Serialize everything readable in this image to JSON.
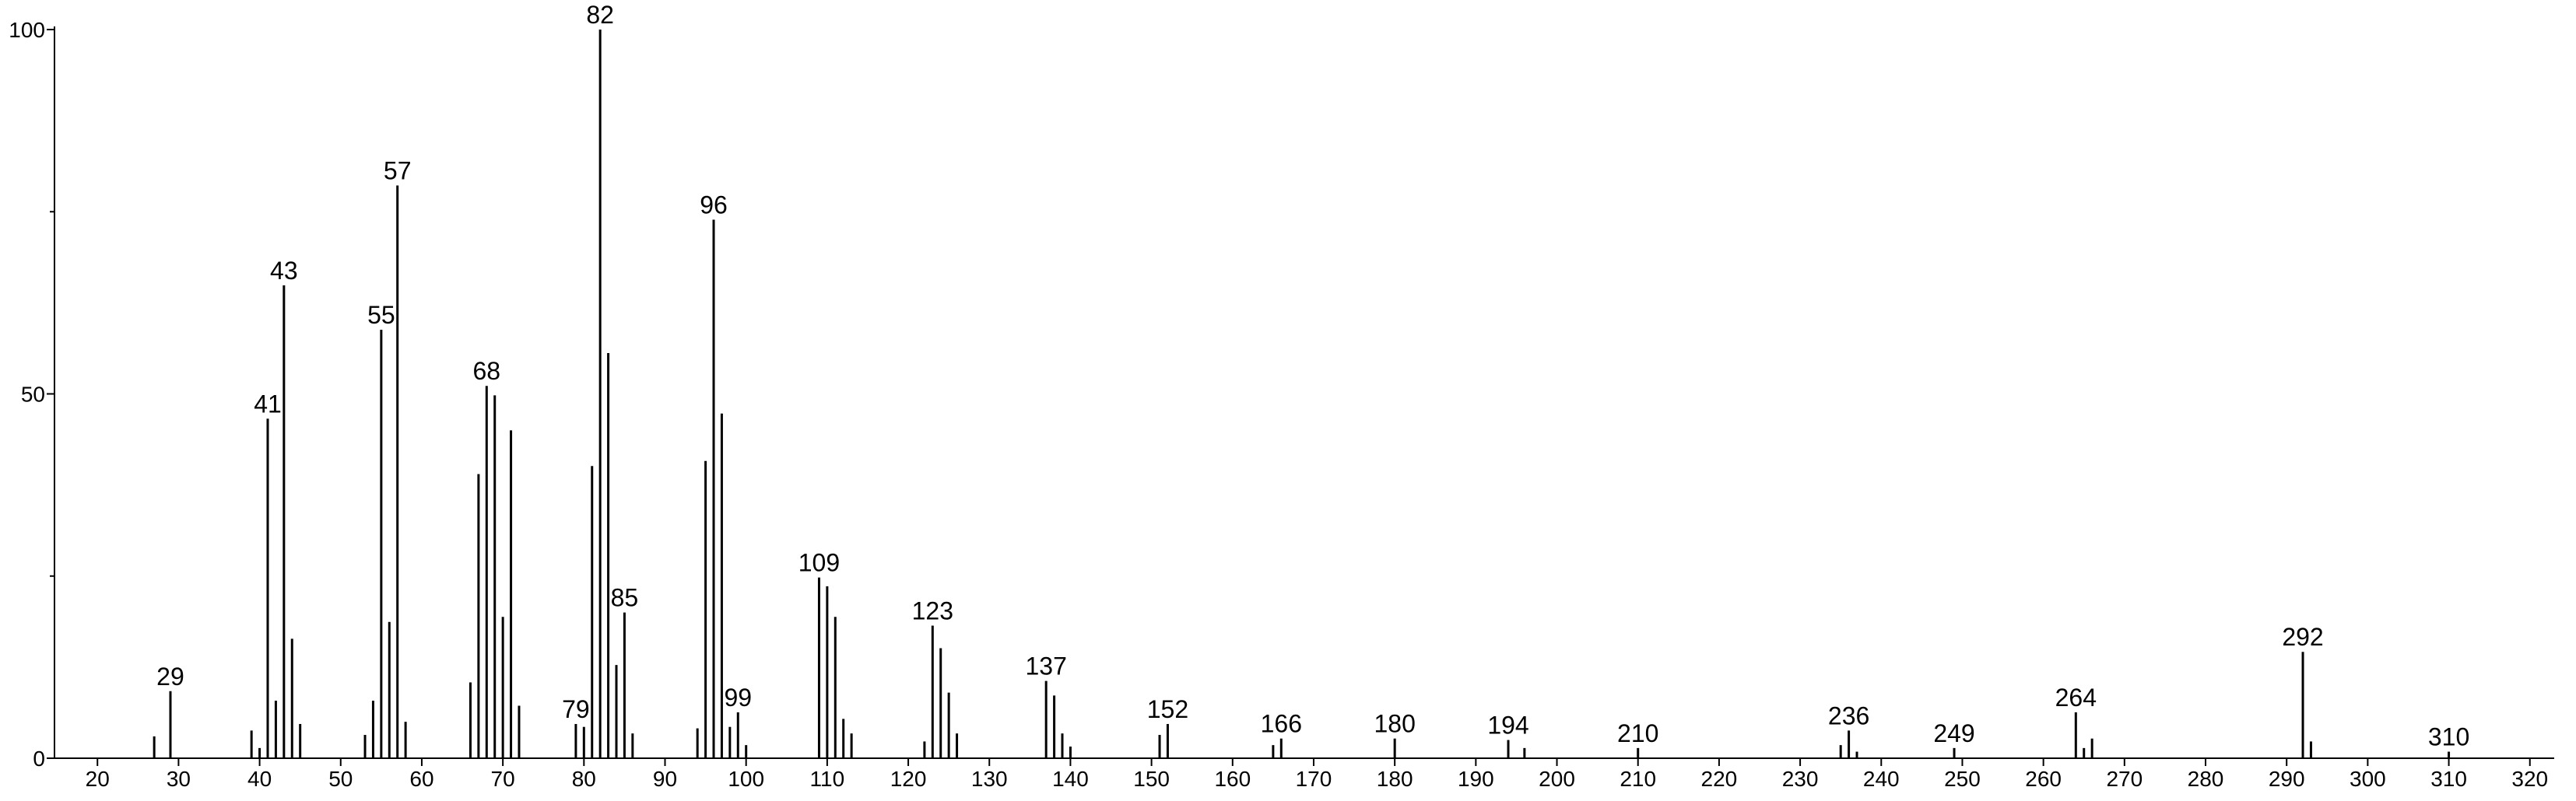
{
  "chart_data": {
    "type": "stem",
    "series": [
      {
        "color": "#000000",
        "x": [
          27,
          39,
          40,
          42,
          44,
          45,
          53,
          54,
          56,
          58,
          66,
          67,
          69,
          70,
          71,
          72,
          80,
          81,
          83,
          84,
          86,
          94,
          95,
          97,
          98,
          100,
          110,
          111,
          112,
          113,
          122,
          124,
          125,
          126,
          138,
          139,
          140,
          151,
          165,
          196,
          235,
          237,
          265,
          266,
          293
        ],
        "values": [
          3,
          3.8,
          1.4,
          7.9,
          16.4,
          4.7,
          3.2,
          7.9,
          18.7,
          5,
          10.4,
          39,
          49.8,
          19.4,
          45,
          7.2,
          4.3,
          40.1,
          55.6,
          12.8,
          3.4,
          4.1,
          40.8,
          47.3,
          4.3,
          1.8,
          23.6,
          19.4,
          5.4,
          3.4,
          2.3,
          15.1,
          9,
          3.4,
          8.6,
          3.4,
          1.6,
          3.2,
          1.8,
          1.4,
          1.8,
          0.9,
          1.4,
          2.7,
          2.3
        ]
      },
      {
        "color": "#000000",
        "x": [
          29,
          41,
          43,
          55,
          57,
          68,
          79,
          82,
          85,
          96,
          99,
          109,
          123,
          137,
          152,
          166,
          180,
          194,
          210,
          236,
          249,
          264,
          292,
          310
        ],
        "values": [
          9.2,
          46.6,
          64.9,
          58.8,
          78.6,
          51.1,
          4.7,
          100,
          20,
          73.9,
          6.3,
          24.8,
          18.2,
          10.6,
          4.7,
          2.7,
          2.7,
          2.5,
          1.4,
          3.8,
          1.4,
          6.3,
          14.6,
          0.9
        ]
      }
    ],
    "xlim": [
      14.7,
      323
    ],
    "xticks": [
      20,
      30,
      40,
      50,
      60,
      70,
      80,
      90,
      100,
      110,
      120,
      130,
      140,
      150,
      160,
      170,
      180,
      190,
      200,
      210,
      220,
      230,
      240,
      250,
      260,
      270,
      280,
      290,
      300,
      310,
      320
    ],
    "ylim": [
      0,
      100
    ],
    "yticks": [
      0,
      50,
      100
    ],
    "yminorticks": [
      25,
      75
    ]
  }
}
